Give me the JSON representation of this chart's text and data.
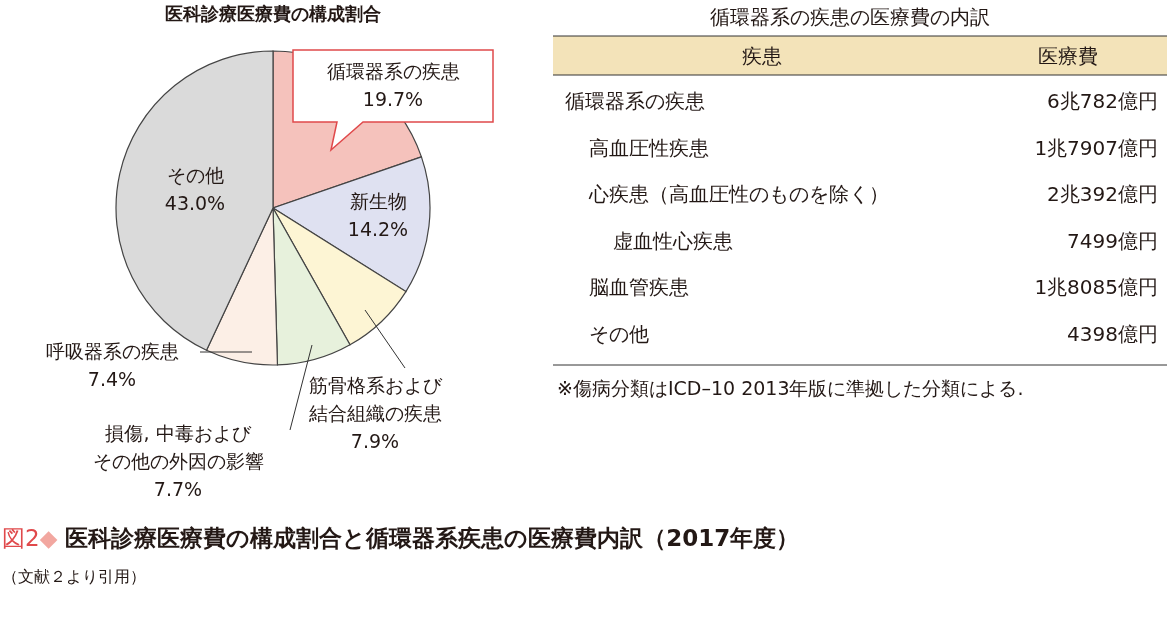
{
  "chart_data": [
    {
      "type": "pie",
      "title": "医科診療医療費の構成割合",
      "categories": [
        "循環器系の疾患",
        "新生物",
        "筋骨格系および結合組織の疾患",
        "損傷, 中毒およびその他の外因の影響",
        "呼吸器系の疾患",
        "その他"
      ],
      "values": [
        19.7,
        14.2,
        7.9,
        7.7,
        7.4,
        43.0
      ],
      "colors": [
        "#f5c2bc",
        "#dfe1f1",
        "#fdf5d4",
        "#e7f1dc",
        "#fcefe6",
        "#dadada"
      ],
      "value_labels": [
        "19.7%",
        "14.2%",
        "7.9%",
        "7.7%",
        "7.4%",
        "43.0%"
      ]
    },
    {
      "type": "other",
      "title": "循環器系の疾患の医療費の内訳",
      "categories": [
        "疾患",
        "医療費"
      ],
      "y_categories": [
        "循環器系の疾患",
        "高血圧性疾患",
        "心疾患（高血圧性のものを除く）",
        "虚血性心疾患",
        "脳血管疾患",
        "その他"
      ],
      "y2_categories": [
        "6兆782億円",
        "1兆7907億円",
        "2兆392億円",
        "7499億円",
        "1兆8085億円",
        "4398億円"
      ],
      "annotations": [
        "※傷病分類はICD–10 2013年版に準拠した分類による.",
        "図2◆ 医科診療医療費の構成割合と循環器系疾患の医療費内訳（2017年度）",
        "（文献２より引用）"
      ]
    }
  ]
}
